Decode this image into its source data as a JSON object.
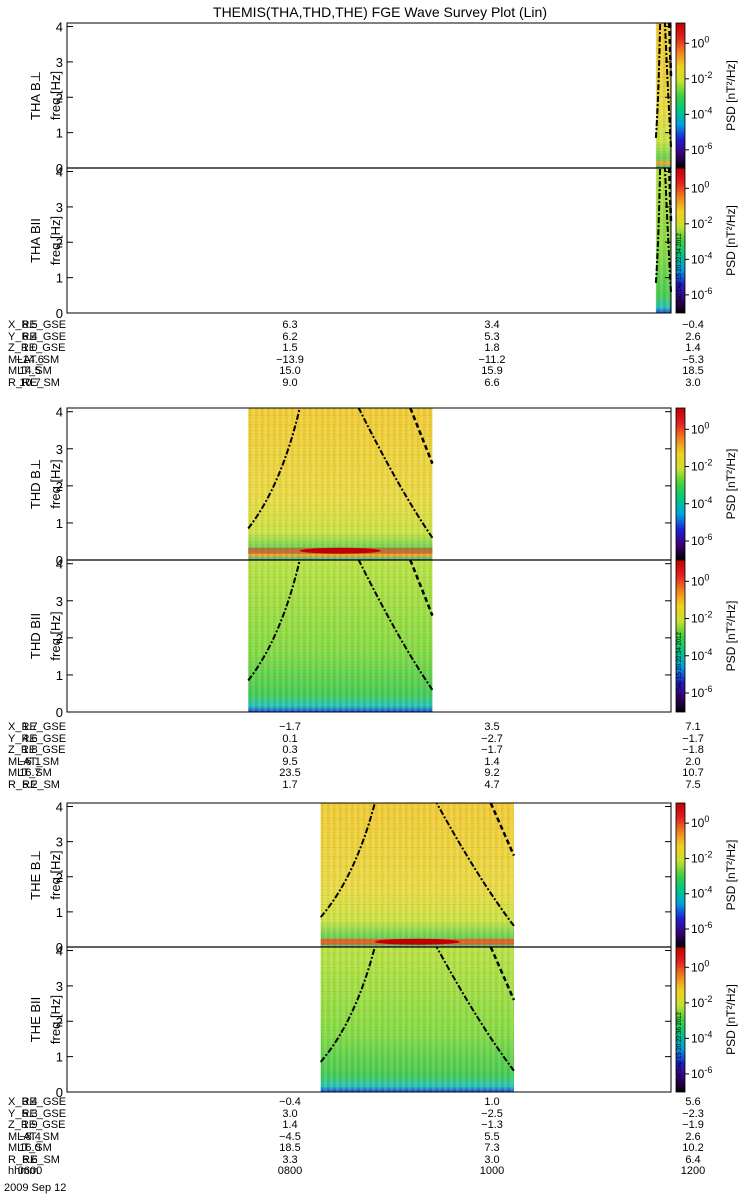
{
  "title": "THEMIS(THA,THD,THE) FGE Wave Survey Plot (Lin)",
  "colorbar_label": "PSD [nT²/Hz]",
  "colorbar_ticks": [
    "10^0",
    "10^-2",
    "10^-4",
    "10^-6"
  ],
  "side_stamp": "Sat Sep 15 20:22:34 2012",
  "side_stamps": [
    "Sat Sep 15 20:22:34 2012",
    "Sat Sep 15 20:22:34 2012",
    "Sat Sep 15 20:22:36 2012"
  ],
  "colors": {
    "colormap": [
      "#000000",
      "#3a0078",
      "#2020d0",
      "#00a0e0",
      "#00c880",
      "#40d040",
      "#c8e030",
      "#f0d020",
      "#f08020",
      "#e02020",
      "#c00000"
    ]
  },
  "chart_data": [
    {
      "probe": "THA",
      "type": "heatmap",
      "panels": [
        {
          "ylabel": "THA B⊥",
          "yunit": "freq [Hz]",
          "ylim": [
            0,
            4.1
          ],
          "yticks": [
            "0",
            "1",
            "2",
            "3",
            "4"
          ],
          "data_x_range": [
            0.975,
            1.0
          ],
          "band_hz": null
        },
        {
          "ylabel": "THA BII",
          "yunit": "freq [Hz]",
          "ylim": [
            0,
            4.1
          ],
          "yticks": [
            "0",
            "1",
            "2",
            "3",
            "4"
          ],
          "data_x_range": [
            0.975,
            1.0
          ],
          "band_hz": null
        }
      ],
      "orbit": {
        "labels": [
          "X_RE_GSE",
          "Y_RE_GSE",
          "Z_RE_GSE",
          "MLAT_SM",
          "MLT_SM",
          "R_RE_SM"
        ],
        "columns": [
          [
            "8.5",
            "6.4",
            "1.0",
            "−14.6",
            "14.5",
            "10.7"
          ],
          [
            "6.3",
            "6.2",
            "1.5",
            "−13.9",
            "15.0",
            "9.0"
          ],
          [
            "3.4",
            "5.3",
            "1.8",
            "−11.2",
            "15.9",
            "6.6"
          ],
          [
            "−0.4",
            "2.6",
            "1.4",
            "−5.3",
            "18.5",
            "3.0"
          ]
        ]
      }
    },
    {
      "probe": "THD",
      "type": "heatmap",
      "panels": [
        {
          "ylabel": "THD B⊥",
          "yunit": "freq [Hz]",
          "ylim": [
            0,
            4.1
          ],
          "yticks": [
            "0",
            "1",
            "2",
            "3",
            "4"
          ],
          "data_x_range": [
            0.3,
            0.605
          ],
          "band_hz": 0.25
        },
        {
          "ylabel": "THD BII",
          "yunit": "freq [Hz]",
          "ylim": [
            0,
            4.1
          ],
          "yticks": [
            "0",
            "1",
            "2",
            "3",
            "4"
          ],
          "data_x_range": [
            0.3,
            0.605
          ],
          "band_hz": null
        }
      ],
      "orbit": {
        "labels": [
          "X_RE_GSE",
          "Y_RE_GSE",
          "Z_RE_GSE",
          "MLAT_SM",
          "MLT_SM",
          "R_RE_SM"
        ],
        "columns": [
          [
            "1.7",
            "4.6",
            "1.8",
            "−6.1",
            "16.7",
            "5.2"
          ],
          [
            "−1.7",
            "0.1",
            "0.3",
            "9.5",
            "23.5",
            "1.7"
          ],
          [
            "3.5",
            "−2.7",
            "−1.7",
            "1.4",
            "9.2",
            "4.7"
          ],
          [
            "7.1",
            "−1.7",
            "−1.8",
            "2.0",
            "10.7",
            "7.5"
          ]
        ]
      }
    },
    {
      "probe": "THE",
      "type": "heatmap",
      "panels": [
        {
          "ylabel": "THE B⊥",
          "yunit": "freq [Hz]",
          "ylim": [
            0,
            4.1
          ],
          "yticks": [
            "0",
            "1",
            "2",
            "3",
            "4"
          ],
          "data_x_range": [
            0.42,
            0.74
          ],
          "band_hz": 0.15
        },
        {
          "ylabel": "THE BII",
          "yunit": "freq [Hz]",
          "ylim": [
            0,
            4.1
          ],
          "yticks": [
            "0",
            "1",
            "2",
            "3",
            "4"
          ],
          "data_x_range": [
            0.42,
            0.74
          ],
          "band_hz": null
        }
      ],
      "orbit": {
        "labels": [
          "X_RE_GSE",
          "Y_RE_GSE",
          "Z_RE_GSE",
          "MLAT_SM",
          "MLT_SM",
          "R_RE_SM",
          "hhmm"
        ],
        "columns": [
          [
            "3.4",
            "5.3",
            "1.9",
            "−8.4",
            "16.0",
            "6.6",
            "0600"
          ],
          [
            "−0.4",
            "3.0",
            "1.4",
            "−4.5",
            "18.5",
            "3.3",
            "0800"
          ],
          [
            "1.0",
            "−2.5",
            "−1.3",
            "5.5",
            "7.3",
            "3.0",
            "1000"
          ],
          [
            "5.6",
            "−2.3",
            "−1.9",
            "2.6",
            "10.2",
            "6.4",
            "1200"
          ]
        ]
      }
    }
  ],
  "date_label": "2009 Sep 12"
}
